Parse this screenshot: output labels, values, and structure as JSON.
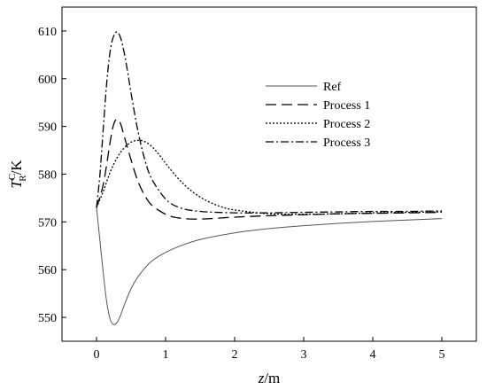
{
  "chart_data": {
    "type": "line",
    "title": "",
    "xlabel": {
      "main": "z",
      "unit": "/m"
    },
    "ylabel": {
      "main": "T",
      "superscript": "C",
      "subscript": "R",
      "unit": "/K"
    },
    "xlim": [
      -0.5,
      5.5
    ],
    "ylim": [
      545,
      615
    ],
    "xticks": [
      0,
      1,
      2,
      3,
      4,
      5
    ],
    "yticks": [
      550,
      560,
      570,
      580,
      590,
      600,
      610
    ],
    "grid": false,
    "legend_position": "upper-right",
    "series": [
      {
        "name": "Ref",
        "style": "solid",
        "color": "#555555",
        "x": [
          0,
          0.05,
          0.1,
          0.15,
          0.2,
          0.25,
          0.3,
          0.35,
          0.4,
          0.5,
          0.6,
          0.7,
          0.8,
          1.0,
          1.2,
          1.5,
          2.0,
          2.5,
          3.0,
          3.5,
          4.0,
          4.5,
          5.0
        ],
        "values": [
          573,
          566,
          559,
          553,
          549.5,
          548.5,
          549,
          550.5,
          552.5,
          556,
          558.5,
          560.3,
          561.8,
          563.6,
          564.9,
          566.3,
          567.7,
          568.6,
          569.2,
          569.7,
          570.1,
          570.4,
          570.7
        ]
      },
      {
        "name": "Process 1",
        "style": "dashed",
        "color": "#000000",
        "x": [
          0,
          0.1,
          0.2,
          0.25,
          0.3,
          0.35,
          0.4,
          0.5,
          0.6,
          0.7,
          0.8,
          1.0,
          1.2,
          1.5,
          2.0,
          2.5,
          3.0,
          3.5,
          4.0,
          4.5,
          5.0
        ],
        "values": [
          573,
          578,
          587,
          590.5,
          591.5,
          590.5,
          588,
          583,
          578.5,
          575.5,
          573.5,
          571.6,
          570.8,
          570.6,
          571,
          571.3,
          571.5,
          571.7,
          571.8,
          571.9,
          572
        ]
      },
      {
        "name": "Process 2",
        "style": "dotted",
        "color": "#000000",
        "x": [
          0,
          0.1,
          0.2,
          0.3,
          0.4,
          0.5,
          0.6,
          0.7,
          0.8,
          0.9,
          1.0,
          1.2,
          1.4,
          1.6,
          1.8,
          2.0,
          2.5,
          3.0,
          3.5,
          4.0,
          4.5,
          5.0
        ],
        "values": [
          573,
          576.5,
          580.5,
          583.5,
          585.5,
          586.7,
          587.1,
          586.8,
          585.8,
          584.2,
          582.3,
          578.8,
          576.2,
          574.4,
          573.2,
          572.5,
          571.7,
          571.6,
          571.7,
          571.9,
          572,
          572.1
        ]
      },
      {
        "name": "Process 3",
        "style": "dashdot",
        "color": "#000000",
        "x": [
          0,
          0.05,
          0.1,
          0.15,
          0.2,
          0.25,
          0.3,
          0.35,
          0.4,
          0.45,
          0.5,
          0.6,
          0.7,
          0.8,
          1.0,
          1.2,
          1.5,
          2.0,
          2.5,
          3.0,
          3.5,
          4.0,
          4.5,
          5.0
        ],
        "values": [
          573,
          580,
          590,
          599.5,
          606,
          609,
          609.8,
          608.5,
          605.5,
          601.5,
          597,
          589,
          583,
          579,
          574.8,
          573,
          572.2,
          571.9,
          571.9,
          572,
          572.1,
          572.2,
          572.2,
          572.3
        ]
      }
    ]
  }
}
